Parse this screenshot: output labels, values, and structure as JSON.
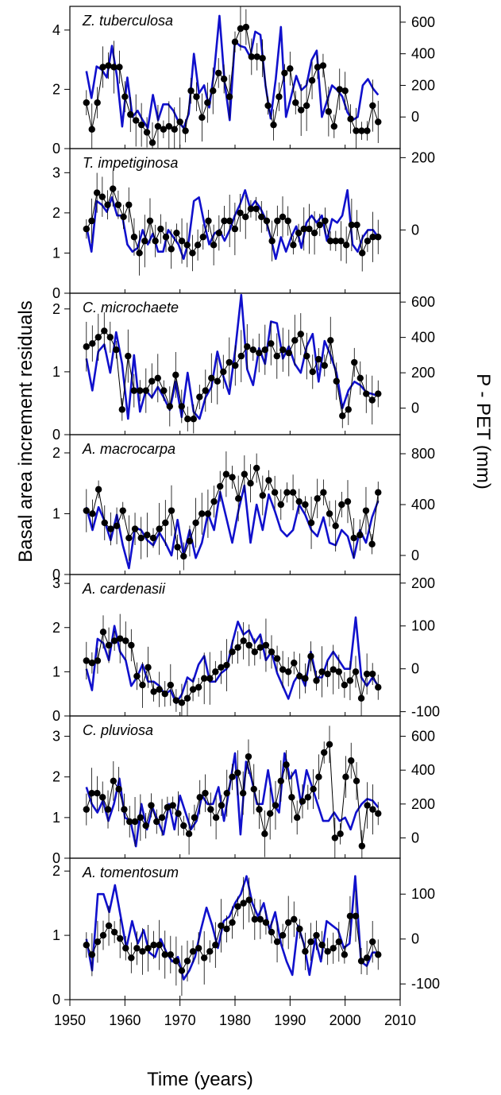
{
  "chart_data": {
    "type": "line",
    "xlabel": "Time (years)",
    "ylabel_left": "Basal area increment residuals",
    "ylabel_right": "P - PET (mm)",
    "xlim": [
      1950,
      2010
    ],
    "x_ticks": [
      1950,
      1960,
      1970,
      1980,
      1990,
      2000,
      2010
    ],
    "colors": {
      "bai": "#000000",
      "ppet": "#1010cc"
    },
    "panels": [
      {
        "title": "Z. tuberculosa",
        "ylim_left": [
          0,
          4.8
        ],
        "left_ticks": [
          0,
          2,
          4
        ],
        "ylim_right": [
          -200,
          700
        ],
        "right_ticks": [
          0,
          200,
          400,
          600
        ],
        "bai": [
          1.55,
          0.65,
          1.55,
          2.75,
          2.8,
          2.75,
          2.75,
          1.75,
          1.15,
          0.95,
          0.8,
          0.55,
          0.2,
          0.75,
          0.65,
          0.75,
          0.65,
          0.9,
          0.6,
          1.95,
          1.75,
          1.05,
          1.55,
          1.95,
          2.55,
          2.35,
          1.75,
          3.6,
          4.05,
          4.1,
          3.1,
          3.1,
          3.05,
          1.45,
          0.8,
          1.75,
          2.55,
          2.7,
          1.55,
          1.3,
          1.45,
          2.3,
          2.75,
          2.8,
          1.25,
          0.75,
          2.0,
          1.95,
          1.0,
          0.6,
          0.6,
          0.6,
          1.45,
          0.9
        ],
        "ppet": [
          290,
          120,
          320,
          300,
          250,
          450,
          250,
          -60,
          250,
          0,
          40,
          -20,
          -70,
          140,
          -20,
          80,
          80,
          40,
          -30,
          -70,
          20,
          400,
          150,
          200,
          60,
          300,
          640,
          220,
          -20,
          480,
          450,
          440,
          380,
          540,
          520,
          200,
          -10,
          240,
          570,
          0,
          130,
          260,
          170,
          200,
          360,
          420,
          0,
          100,
          200,
          170,
          130,
          30,
          -20,
          0,
          200,
          240,
          180,
          140
        ]
      },
      {
        "title": "T. impetiginosa",
        "ylim_left": [
          0,
          3.6
        ],
        "left_ticks": [
          0,
          1,
          2,
          3
        ],
        "ylim_right": [
          -175,
          225
        ],
        "right_ticks": [
          0,
          200
        ],
        "bai": [
          1.6,
          1.8,
          2.5,
          2.4,
          2.2,
          2.6,
          2.2,
          1.9,
          2.2,
          1.4,
          1.0,
          1.3,
          1.8,
          1.3,
          1.6,
          1.4,
          1.1,
          1.5,
          1.3,
          1.2,
          1.0,
          1.2,
          1.4,
          1.8,
          1.2,
          1.5,
          1.8,
          1.8,
          1.6,
          2.0,
          1.9,
          2.1,
          2.1,
          1.9,
          1.8,
          1.3,
          1.8,
          1.9,
          1.8,
          1.2,
          1.5,
          1.6,
          1.6,
          1.5,
          1.7,
          1.8,
          1.3,
          1.3,
          1.3,
          1.2,
          1.7,
          1.7,
          1.0,
          1.3,
          1.4,
          1.4
        ],
        "ppet": [
          10,
          -60,
          80,
          70,
          50,
          90,
          40,
          40,
          -40,
          -60,
          -50,
          0,
          -40,
          -10,
          -60,
          -60,
          0,
          -20,
          -40,
          -80,
          -30,
          80,
          90,
          20,
          -40,
          -10,
          0,
          -30,
          0,
          40,
          70,
          110,
          60,
          80,
          60,
          30,
          -20,
          -80,
          -20,
          -60,
          -20,
          10,
          -50,
          20,
          40,
          20,
          40,
          -30,
          30,
          20,
          40,
          110,
          -40,
          -60,
          -20,
          0,
          0,
          -20
        ]
      },
      {
        "title": "C. microchaete",
        "ylim_left": [
          0,
          2.25
        ],
        "left_ticks": [
          0,
          1,
          2
        ],
        "ylim_right": [
          -150,
          650
        ],
        "right_ticks": [
          0,
          200,
          400,
          600
        ],
        "bai": [
          1.4,
          1.45,
          1.55,
          1.65,
          1.55,
          1.35,
          0.4,
          1.25,
          0.7,
          0.7,
          0.7,
          0.85,
          0.9,
          0.7,
          0.45,
          0.95,
          0.45,
          0.25,
          0.25,
          0.6,
          0.7,
          0.9,
          0.85,
          1.0,
          1.15,
          1.1,
          1.25,
          1.4,
          1.35,
          1.3,
          1.35,
          1.45,
          1.25,
          1.35,
          1.3,
          1.5,
          1.6,
          1.25,
          1.0,
          1.2,
          1.1,
          1.5,
          0.85,
          0.3,
          0.4,
          1.15,
          0.9,
          0.65,
          0.55,
          0.65
        ],
        "ppet": [
          280,
          100,
          320,
          360,
          200,
          430,
          250,
          -60,
          300,
          -20,
          100,
          60,
          120,
          60,
          -10,
          150,
          -50,
          200,
          -20,
          -60,
          60,
          120,
          320,
          180,
          80,
          330,
          640,
          220,
          130,
          340,
          250,
          490,
          480,
          280,
          350,
          250,
          200,
          350,
          420,
          150,
          380,
          300,
          200,
          0,
          100,
          150,
          130,
          90,
          80,
          70
        ]
      },
      {
        "title": "A. macrocarpa",
        "ylim_left": [
          0,
          2.3
        ],
        "left_ticks": [
          0,
          1,
          2
        ],
        "ylim_right": [
          -150,
          950
        ],
        "right_ticks": [
          0,
          400,
          800
        ],
        "bai": [
          1.05,
          1.0,
          1.4,
          0.85,
          0.75,
          0.8,
          1.05,
          0.6,
          0.75,
          0.6,
          0.65,
          0.6,
          0.75,
          0.85,
          1.05,
          0.45,
          0.3,
          0.55,
          0.85,
          1.0,
          1.0,
          1.2,
          1.45,
          1.65,
          1.6,
          1.25,
          1.65,
          1.5,
          1.75,
          1.3,
          1.55,
          1.35,
          1.15,
          1.35,
          1.35,
          1.2,
          1.15,
          0.85,
          1.25,
          1.35,
          1.0,
          0.8,
          1.15,
          1.2,
          0.6,
          0.65,
          1.05,
          0.5,
          1.35
        ],
        "ppet": [
          380,
          200,
          380,
          270,
          120,
          320,
          80,
          -100,
          220,
          200,
          120,
          80,
          180,
          100,
          0,
          280,
          0,
          200,
          -20,
          100,
          330,
          200,
          500,
          300,
          100,
          350,
          550,
          100,
          400,
          200,
          480,
          350,
          200,
          150,
          200,
          400,
          320,
          200,
          150,
          300,
          100,
          80,
          200,
          150,
          -20,
          200,
          100,
          300,
          430
        ]
      },
      {
        "title": "A. cardenasii",
        "ylim_left": [
          0,
          3.2
        ],
        "left_ticks": [
          0,
          1,
          2,
          3
        ],
        "ylim_right": [
          -110,
          220
        ],
        "right_ticks": [
          -100,
          0,
          100,
          200
        ],
        "bai": [
          1.25,
          1.2,
          1.25,
          1.9,
          1.6,
          1.7,
          1.75,
          1.7,
          1.6,
          0.9,
          0.7,
          1.1,
          0.55,
          0.6,
          0.5,
          0.7,
          0.35,
          0.3,
          0.4,
          0.6,
          0.65,
          0.85,
          0.85,
          1.0,
          1.1,
          1.15,
          1.45,
          1.55,
          1.7,
          1.6,
          1.45,
          1.55,
          1.6,
          1.45,
          1.3,
          1.05,
          1.0,
          1.2,
          0.9,
          0.85,
          1.35,
          0.8,
          1.0,
          0.95,
          1.05,
          1.0,
          0.7,
          0.8,
          1.0,
          0.4,
          0.95,
          0.95,
          0.65
        ],
        "ppet": [
          0,
          -50,
          70,
          60,
          20,
          100,
          40,
          20,
          -40,
          -20,
          10,
          -30,
          -30,
          -40,
          -60,
          -50,
          -80,
          -60,
          -20,
          -30,
          10,
          30,
          -30,
          -30,
          -10,
          0,
          60,
          110,
          80,
          90,
          60,
          80,
          20,
          40,
          -10,
          -40,
          -70,
          -30,
          -10,
          -40,
          40,
          -20,
          -20,
          20,
          40,
          20,
          0,
          0,
          120,
          -20,
          -40,
          -20,
          -40
        ]
      },
      {
        "title": "C. pluviosa",
        "ylim_left": [
          0,
          3.5
        ],
        "left_ticks": [
          0,
          1,
          2,
          3
        ],
        "ylim_right": [
          -120,
          720
        ],
        "right_ticks": [
          0,
          200,
          400,
          600
        ],
        "bai": [
          1.2,
          1.6,
          1.6,
          1.5,
          1.2,
          1.9,
          1.7,
          1.2,
          0.9,
          0.9,
          1.0,
          0.8,
          1.3,
          0.9,
          1.0,
          1.25,
          1.3,
          1.1,
          0.8,
          0.6,
          1.0,
          1.5,
          1.6,
          1.2,
          1.0,
          1.3,
          1.6,
          2.0,
          2.1,
          1.6,
          2.5,
          1.7,
          1.2,
          0.6,
          1.1,
          1.3,
          1.9,
          2.3,
          1.5,
          1.0,
          1.4,
          1.5,
          1.7,
          2.0,
          2.6,
          2.8,
          0.5,
          0.6,
          2.0,
          2.4,
          1.9,
          0.3,
          1.3,
          1.2,
          1.1
        ],
        "ppet": [
          300,
          200,
          150,
          220,
          100,
          200,
          350,
          120,
          100,
          -50,
          200,
          50,
          180,
          100,
          20,
          200,
          50,
          250,
          150,
          50,
          100,
          250,
          200,
          200,
          300,
          100,
          300,
          500,
          20,
          450,
          350,
          200,
          200,
          400,
          200,
          150,
          500,
          350,
          400,
          200,
          400,
          300,
          200,
          100,
          100,
          150,
          100,
          120,
          50,
          150,
          200,
          230,
          220,
          180
        ]
      },
      {
        "title": "A. tomentosum",
        "ylim_left": [
          0,
          2.2
        ],
        "left_ticks": [
          0,
          1,
          2
        ],
        "ylim_right": [
          -135,
          180
        ],
        "right_ticks": [
          -100,
          0,
          100
        ],
        "bai": [
          0.85,
          0.7,
          0.9,
          1.0,
          1.15,
          1.05,
          0.95,
          0.8,
          0.65,
          0.8,
          0.75,
          0.8,
          0.85,
          0.85,
          0.7,
          0.7,
          0.6,
          0.45,
          0.6,
          0.75,
          0.8,
          0.65,
          0.75,
          0.85,
          1.15,
          1.1,
          1.2,
          1.45,
          1.5,
          1.55,
          1.25,
          1.25,
          1.2,
          1.05,
          0.9,
          1.0,
          1.2,
          1.25,
          1.1,
          0.75,
          0.9,
          1.0,
          0.85,
          0.75,
          0.8,
          0.9,
          0.7,
          1.3,
          1.3,
          0.6,
          0.65,
          0.9,
          0.7
        ],
        "ppet": [
          0,
          -70,
          100,
          100,
          60,
          120,
          50,
          -20,
          40,
          -10,
          20,
          -30,
          -40,
          0,
          -30,
          -50,
          -40,
          -90,
          -70,
          -40,
          20,
          70,
          30,
          -20,
          40,
          50,
          80,
          100,
          140,
          80,
          50,
          80,
          20,
          60,
          -10,
          -50,
          -80,
          30,
          -10,
          -80,
          0,
          -50,
          40,
          30,
          20,
          -20,
          -10,
          140,
          -50,
          -60,
          -30,
          -30
        ]
      }
    ]
  }
}
